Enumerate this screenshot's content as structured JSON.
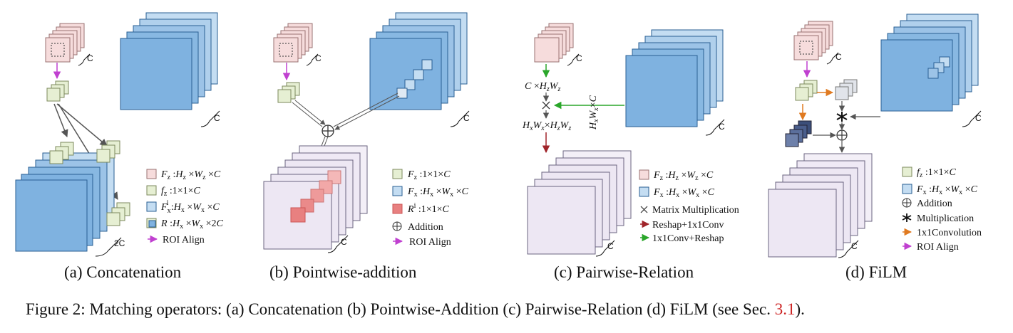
{
  "colors": {
    "big_fill": "#7fb2e0",
    "big_stroke": "#2a5f93",
    "big_back": "#c4ddf2",
    "small_pink": "#f6dcdc",
    "small_pink_stroke": "#9a7272",
    "small_green": "#e6efd3",
    "small_green_stroke": "#7c8a5e",
    "purple": "#ede7f3",
    "purple_stroke": "#6b6480",
    "red_patch": "#e88080",
    "navy": "#3c4f7a",
    "arrow_magenta": "#c040d0",
    "arrow_green": "#2aa62a",
    "arrow_red": "#a0242a",
    "arrow_orange": "#e07a20",
    "arrow_gray": "#555555"
  },
  "panels": [
    {
      "id": "a",
      "subtitle": "(a) Concatenation",
      "dims": [
        "C",
        "2C"
      ],
      "legend": [
        {
          "swatch": "pink",
          "symbol": "F",
          "sub": "z",
          "expr": ":H ×W ×C",
          "expr_subs": "z z"
        },
        {
          "swatch": "green",
          "symbol": "f",
          "sub": "z",
          "expr": ":1×1×C"
        },
        {
          "swatch": "blue",
          "symbol": "F",
          "sub": "x",
          "sup": "i",
          "expr": ":H ×W ×C"
        },
        {
          "swatch": "stack",
          "symbol": "R",
          "expr": ":H ×W ×2C"
        },
        {
          "swatch": "magenta-arrow",
          "text": "ROI Align"
        }
      ]
    },
    {
      "id": "b",
      "subtitle": "(b) Pointwise-addition",
      "dims": [
        "C",
        "C"
      ],
      "legend": [
        {
          "swatch": "green",
          "symbol": "F",
          "sub": "z",
          "expr": ":1×1×C"
        },
        {
          "swatch": "blue",
          "symbol": "F",
          "sub": "x",
          "expr": ":H ×W ×C"
        },
        {
          "swatch": "red",
          "symbol": "R",
          "sup": "i",
          "expr": ":1×1×C"
        },
        {
          "swatch": "oplus",
          "text": "Addition"
        },
        {
          "swatch": "magenta-arrow",
          "text": "ROI Align"
        }
      ]
    },
    {
      "id": "c",
      "subtitle": "(c) Pairwise-Relation",
      "dims": [
        "C",
        "C"
      ],
      "labels": {
        "top": "C×H W",
        "middle": "H W ×H W",
        "side": "H W ×C"
      },
      "legend": [
        {
          "swatch": "pink",
          "symbol": "F",
          "sub": "z",
          "expr": ":H ×W ×C"
        },
        {
          "swatch": "blue",
          "symbol": "F",
          "sub": "x",
          "expr": ":H ×W ×C"
        },
        {
          "swatch": "times",
          "text": "Matrix Multiplication"
        },
        {
          "swatch": "red-arrow",
          "text": "Reshap+1x1Conv"
        },
        {
          "swatch": "green-arrow",
          "text": "1x1Conv+Reshap"
        }
      ]
    },
    {
      "id": "d",
      "subtitle": "(d) FiLM",
      "dims": [
        "C",
        "C"
      ],
      "legend": [
        {
          "swatch": "green",
          "symbol": "f",
          "sub": "z",
          "expr": ":1×1×C"
        },
        {
          "swatch": "blue",
          "symbol": "F",
          "sub": "x",
          "expr": ":H ×W ×C"
        },
        {
          "swatch": "oplus",
          "text": "Addition"
        },
        {
          "swatch": "star",
          "text": "Multiplication"
        },
        {
          "swatch": "orange-arrow",
          "text": "1x1Convolution"
        },
        {
          "swatch": "magenta-arrow",
          "text": "ROI Align"
        }
      ]
    }
  ],
  "caption": {
    "prefix": "Figure 2: Matching operators: (a) Concatenation (b) Pointwise-Addition (c) Pairwise-Relation (d) FiLM (see Sec. ",
    "ref": "3.1",
    "suffix": ")."
  }
}
